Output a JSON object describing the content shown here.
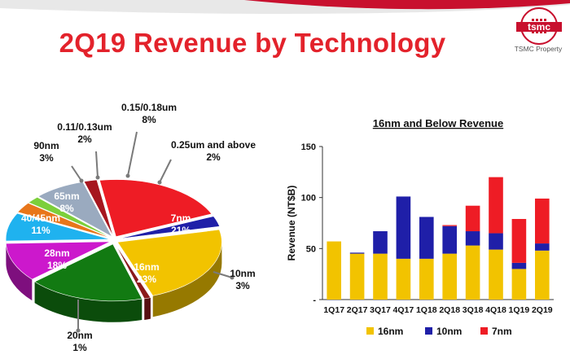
{
  "page": {
    "title": "2Q19 Revenue by Technology",
    "logo_text": "tsmc",
    "logo_caption": "TSMC Property"
  },
  "colors": {
    "title_red": "#e3222b",
    "band_red": "#c8102e",
    "16nm": "#f2c300",
    "10nm": "#1f1fa8",
    "7nm": "#ee1c25",
    "28nm": "#127a12",
    "40/45nm": "#cc18cc",
    "65nm": "#1fb2ef",
    "90nm": "#e8761a",
    "0.11/0.13um": "#7ccf3a",
    "0.15/0.18um": "#9aaabf",
    "0.25um and above": "#a6161f",
    "20nm": "#8b1a1a"
  },
  "chart_data": [
    {
      "type": "pie",
      "style": "3d-exploded",
      "slices": [
        {
          "label": "7nm",
          "value": 21,
          "value_label": "21%",
          "color_key": "7nm"
        },
        {
          "label": "10nm",
          "value": 3,
          "value_label": "3%",
          "color_key": "10nm"
        },
        {
          "label": "16nm",
          "value": 23,
          "value_label": "23%",
          "color_key": "16nm"
        },
        {
          "label": "20nm",
          "value": 1,
          "value_label": "1%",
          "color_key": "20nm"
        },
        {
          "label": "28nm",
          "value": 18,
          "value_label": "18%",
          "color_key": "28nm"
        },
        {
          "label": "40/45nm",
          "value": 11,
          "value_label": "11%",
          "color_key": "40/45nm"
        },
        {
          "label": "65nm",
          "value": 8,
          "value_label": "8%",
          "color_key": "65nm"
        },
        {
          "label": "90nm",
          "value": 3,
          "value_label": "3%",
          "color_key": "90nm"
        },
        {
          "label": "0.11/0.13um",
          "value": 2,
          "value_label": "2%",
          "color_key": "0.11/0.13um"
        },
        {
          "label": "0.15/0.18um",
          "value": 8,
          "value_label": "8%",
          "color_key": "0.15/0.18um"
        },
        {
          "label": "0.25um and above",
          "value": 2,
          "value_label": "2%",
          "color_key": "0.25um and above"
        }
      ]
    },
    {
      "type": "bar",
      "stacked": true,
      "title": "16nm and Below Revenue",
      "ylabel": "Revenue (NT$B)",
      "ylim": [
        0,
        150
      ],
      "yticks": [
        0,
        50,
        100,
        150
      ],
      "ytick_labels": [
        "-",
        "50",
        "100",
        "150"
      ],
      "categories": [
        "1Q17",
        "2Q17",
        "3Q17",
        "4Q17",
        "1Q18",
        "2Q18",
        "3Q18",
        "4Q18",
        "1Q19",
        "2Q19"
      ],
      "series": [
        {
          "name": "16nm",
          "color_key": "16nm",
          "values": [
            57,
            45,
            45,
            40,
            40,
            45,
            53,
            49,
            30,
            48
          ]
        },
        {
          "name": "10nm",
          "color_key": "10nm",
          "values": [
            0,
            1,
            22,
            61,
            41,
            27,
            14,
            16,
            6,
            7
          ]
        },
        {
          "name": "7nm",
          "color_key": "7nm",
          "values": [
            0,
            0,
            0,
            0,
            0,
            1,
            25,
            55,
            43,
            44
          ]
        }
      ],
      "legend": "bottom",
      "grid": false
    }
  ]
}
